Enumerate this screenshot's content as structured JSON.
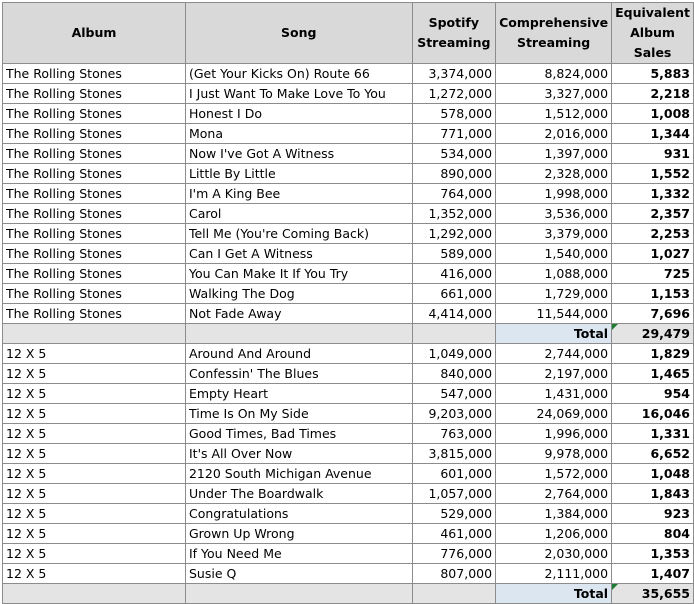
{
  "headers": {
    "album": "Album",
    "song": "Song",
    "spotify": "Spotify Streaming",
    "comprehensive": "Comprehensive Streaming",
    "equivalent": "Equivalent Album Sales"
  },
  "sections": [
    {
      "rows": [
        {
          "album": "The Rolling Stones",
          "song": "(Get Your Kicks On) Route 66",
          "spotify": "3,374,000",
          "comprehensive": "8,824,000",
          "eas": "5,883"
        },
        {
          "album": "The Rolling Stones",
          "song": "I Just Want To Make Love To You",
          "spotify": "1,272,000",
          "comprehensive": "3,327,000",
          "eas": "2,218"
        },
        {
          "album": "The Rolling Stones",
          "song": "Honest I Do",
          "spotify": "578,000",
          "comprehensive": "1,512,000",
          "eas": "1,008"
        },
        {
          "album": "The Rolling Stones",
          "song": "Mona",
          "spotify": "771,000",
          "comprehensive": "2,016,000",
          "eas": "1,344"
        },
        {
          "album": "The Rolling Stones",
          "song": "Now I've Got A Witness",
          "spotify": "534,000",
          "comprehensive": "1,397,000",
          "eas": "931"
        },
        {
          "album": "The Rolling Stones",
          "song": "Little By Little",
          "spotify": "890,000",
          "comprehensive": "2,328,000",
          "eas": "1,552"
        },
        {
          "album": "The Rolling Stones",
          "song": "I'm A King Bee",
          "spotify": "764,000",
          "comprehensive": "1,998,000",
          "eas": "1,332"
        },
        {
          "album": "The Rolling Stones",
          "song": "Carol",
          "spotify": "1,352,000",
          "comprehensive": "3,536,000",
          "eas": "2,357"
        },
        {
          "album": "The Rolling Stones",
          "song": "Tell Me (You're Coming Back)",
          "spotify": "1,292,000",
          "comprehensive": "3,379,000",
          "eas": "2,253"
        },
        {
          "album": "The Rolling Stones",
          "song": "Can I Get A Witness",
          "spotify": "589,000",
          "comprehensive": "1,540,000",
          "eas": "1,027"
        },
        {
          "album": "The Rolling Stones",
          "song": "You Can Make It If You Try",
          "spotify": "416,000",
          "comprehensive": "1,088,000",
          "eas": "725"
        },
        {
          "album": "The Rolling Stones",
          "song": "Walking The Dog",
          "spotify": "661,000",
          "comprehensive": "1,729,000",
          "eas": "1,153"
        },
        {
          "album": "The Rolling Stones",
          "song": "Not Fade Away",
          "spotify": "4,414,000",
          "comprehensive": "11,544,000",
          "eas": "7,696"
        }
      ],
      "total_label": "Total",
      "total_value": "29,479"
    },
    {
      "rows": [
        {
          "album": "12 X 5",
          "song": "Around And Around",
          "spotify": "1,049,000",
          "comprehensive": "2,744,000",
          "eas": "1,829"
        },
        {
          "album": "12 X 5",
          "song": "Confessin' The Blues",
          "spotify": "840,000",
          "comprehensive": "2,197,000",
          "eas": "1,465"
        },
        {
          "album": "12 X 5",
          "song": "Empty Heart",
          "spotify": "547,000",
          "comprehensive": "1,431,000",
          "eas": "954"
        },
        {
          "album": "12 X 5",
          "song": "Time Is On My Side",
          "spotify": "9,203,000",
          "comprehensive": "24,069,000",
          "eas": "16,046"
        },
        {
          "album": "12 X 5",
          "song": "Good Times, Bad Times",
          "spotify": "763,000",
          "comprehensive": "1,996,000",
          "eas": "1,331"
        },
        {
          "album": "12 X 5",
          "song": "It's All Over Now",
          "spotify": "3,815,000",
          "comprehensive": "9,978,000",
          "eas": "6,652"
        },
        {
          "album": "12 X 5",
          "song": "2120 South Michigan Avenue",
          "spotify": "601,000",
          "comprehensive": "1,572,000",
          "eas": "1,048"
        },
        {
          "album": "12 X 5",
          "song": "Under The Boardwalk",
          "spotify": "1,057,000",
          "comprehensive": "2,764,000",
          "eas": "1,843"
        },
        {
          "album": "12 X 5",
          "song": "Congratulations",
          "spotify": "529,000",
          "comprehensive": "1,384,000",
          "eas": "923"
        },
        {
          "album": "12 X 5",
          "song": "Grown Up Wrong",
          "spotify": "461,000",
          "comprehensive": "1,206,000",
          "eas": "804"
        },
        {
          "album": "12 X 5",
          "song": "If You Need Me",
          "spotify": "776,000",
          "comprehensive": "2,030,000",
          "eas": "1,353"
        },
        {
          "album": "12 X 5",
          "song": "Susie Q",
          "spotify": "807,000",
          "comprehensive": "2,111,000",
          "eas": "1,407"
        }
      ],
      "total_label": "Total",
      "total_value": "35,655"
    }
  ],
  "colors": {
    "header_bg": "#d9d9d9",
    "total_row_bg": "#e4e4e4",
    "total_label_bg": "#dce6f1",
    "grid": "#8c8c8c",
    "corner_marker": "#1e7b34"
  }
}
